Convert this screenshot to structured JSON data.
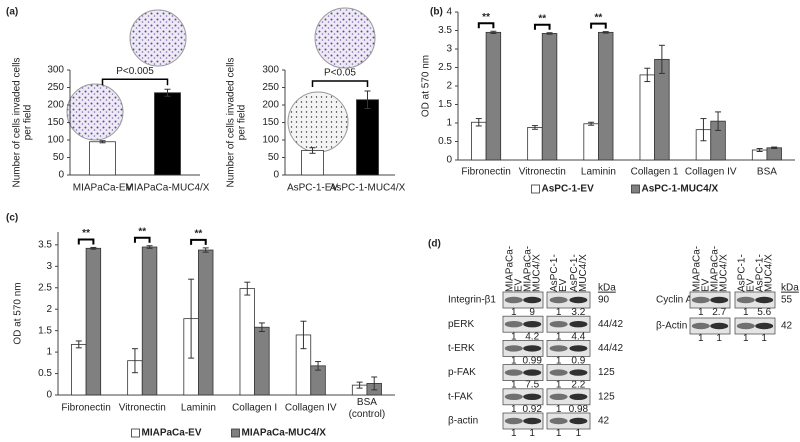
{
  "chart_data": [
    {
      "type": "bar",
      "panel_label": "(a)",
      "ylabel": "Number of cells invaded cells per field",
      "categories": [
        "MIAPaCa-EV",
        "MIAPaCa-MUC4/X"
      ],
      "values": [
        95,
        235
      ],
      "errors": [
        3,
        10
      ],
      "colors": [
        "#ffffff",
        "#000000"
      ],
      "annotation": "P<0.005",
      "ylim": [
        0,
        300
      ],
      "yticks": [
        0,
        50,
        100,
        150,
        200,
        250,
        300
      ]
    },
    {
      "type": "bar",
      "ylabel": "Number of cells invaded cells per field",
      "categories": [
        "AsPC-1-EV",
        "AsPC-1-MUC4/X"
      ],
      "values": [
        70,
        215
      ],
      "errors": [
        8,
        25
      ],
      "colors": [
        "#ffffff",
        "#000000"
      ],
      "annotation": "P<0.05",
      "ylim": [
        0,
        300
      ],
      "yticks": [
        0,
        50,
        100,
        150,
        200,
        250,
        300
      ]
    },
    {
      "type": "bar",
      "panel_label": "(b)",
      "ylabel": "OD at 570 nm",
      "categories": [
        "Fibronectin",
        "Vitronectin",
        "Laminin",
        "Collagen 1",
        "Collagen IV",
        "BSA"
      ],
      "series": [
        {
          "name": "AsPC-1-EV",
          "color": "#ffffff",
          "values": [
            1.02,
            0.88,
            0.98,
            2.3,
            0.82,
            0.27
          ],
          "errors": [
            0.1,
            0.05,
            0.04,
            0.18,
            0.3,
            0.04
          ]
        },
        {
          "name": "AsPC-1-MUC4/X",
          "color": "#808080",
          "values": [
            3.45,
            3.42,
            3.45,
            2.72,
            1.05,
            0.33
          ],
          "errors": [
            0.03,
            0.02,
            0.02,
            0.38,
            0.25,
            0.02
          ]
        }
      ],
      "significance": [
        "**",
        "**",
        "**",
        null,
        null,
        null
      ],
      "ylim": [
        0,
        4
      ],
      "yticks": [
        0,
        0.5,
        1,
        1.5,
        2,
        2.5,
        3,
        3.5,
        4
      ]
    },
    {
      "type": "bar",
      "panel_label": "(c)",
      "ylabel": "OD at 570 nm",
      "categories": [
        "Fibronectin",
        "Vitronectin",
        "Laminin",
        "Collagen I",
        "Collagen IV",
        "BSA (control)"
      ],
      "series": [
        {
          "name": "MIAPaCa-EV",
          "color": "#ffffff",
          "values": [
            1.18,
            0.8,
            1.78,
            2.48,
            1.4,
            0.23
          ],
          "errors": [
            0.08,
            0.28,
            0.92,
            0.15,
            0.32,
            0.07
          ]
        },
        {
          "name": "MIAPaCa-MUC4/X",
          "color": "#808080",
          "values": [
            3.42,
            3.45,
            3.38,
            1.58,
            0.68,
            0.27
          ],
          "errors": [
            0.02,
            0.03,
            0.05,
            0.1,
            0.1,
            0.15
          ]
        }
      ],
      "significance": [
        "**",
        "**",
        "**",
        null,
        null,
        null
      ],
      "ylim": [
        0,
        3.8
      ],
      "yticks": [
        0,
        0.5,
        1,
        1.5,
        2,
        2.5,
        3,
        3.5
      ]
    }
  ],
  "blots": {
    "panel_label": "(d)",
    "kda_header": "kDa",
    "groups": [
      {
        "lanes": [
          "MIAPaCa-EV",
          "MIAPaCa-MUC4/X",
          "AsPC-1-EV",
          "AsPC-1-MUC4/X"
        ],
        "rows": [
          {
            "name": "Integrin-β1",
            "kda": "90",
            "values": [
              1,
              9,
              1,
              3.2
            ]
          },
          {
            "name": "pERK",
            "kda": "44/42",
            "values": [
              1,
              4.2,
              1,
              4.4
            ]
          },
          {
            "name": "t-ERK",
            "kda": "44/42",
            "values": [
              1,
              0.99,
              1,
              0.9
            ]
          },
          {
            "name": "p-FAK",
            "kda": "125",
            "values": [
              1,
              7.5,
              1,
              2.2
            ]
          },
          {
            "name": "t-FAK",
            "kda": "125",
            "values": [
              1,
              0.92,
              1,
              0.98
            ]
          },
          {
            "name": "β-actin",
            "kda": "42",
            "values": [
              1,
              1,
              1,
              1
            ]
          }
        ]
      },
      {
        "lanes": [
          "MIAPaCa-EV",
          "MIAPaCa-MUC4/X",
          "AsPC-1-EV",
          "AsPC-1-MUC4/X"
        ],
        "rows": [
          {
            "name": "Cyclin A2",
            "kda": "55",
            "values": [
              1,
              2.7,
              1,
              5.6
            ]
          },
          {
            "name": "β-Actin",
            "kda": "42",
            "values": [
              1,
              1,
              1,
              1
            ]
          }
        ]
      }
    ]
  }
}
